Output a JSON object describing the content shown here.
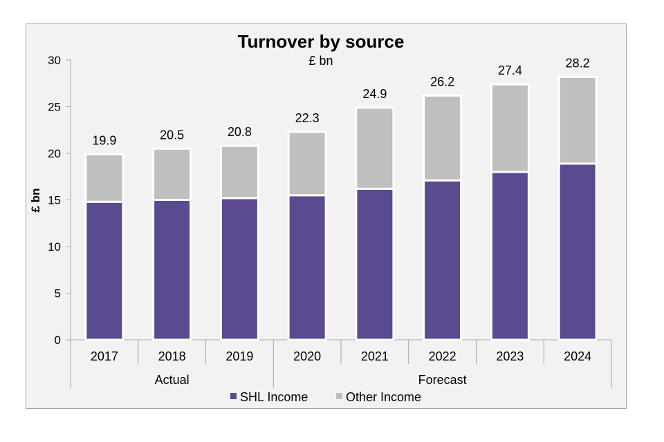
{
  "chart_data": {
    "type": "bar",
    "stacked": true,
    "title": "Turnover by source",
    "subtitle": "£ bn",
    "ylabel": "£ bn",
    "xlabel": "",
    "ylim": [
      0,
      30
    ],
    "yticks": [
      0,
      5,
      10,
      15,
      20,
      25,
      30
    ],
    "categories": [
      "2017",
      "2018",
      "2019",
      "2020",
      "2021",
      "2022",
      "2023",
      "2024"
    ],
    "groups": [
      {
        "label": "Actual",
        "categories": [
          "2017",
          "2018",
          "2019"
        ]
      },
      {
        "label": "Forecast",
        "categories": [
          "2020",
          "2021",
          "2022",
          "2023",
          "2024"
        ]
      }
    ],
    "series": [
      {
        "name": "SHL Income",
        "color": "#5b4a8f",
        "values": [
          14.8,
          15.0,
          15.2,
          15.5,
          16.2,
          17.1,
          18.0,
          18.9
        ]
      },
      {
        "name": "Other Income",
        "color": "#bfbfbf",
        "values": [
          5.1,
          5.5,
          5.6,
          6.8,
          8.7,
          9.1,
          9.4,
          9.3
        ]
      }
    ],
    "totals": [
      "19.9",
      "20.5",
      "20.8",
      "22.3",
      "24.9",
      "26.2",
      "27.4",
      "28.2"
    ],
    "legend_position": "bottom"
  }
}
